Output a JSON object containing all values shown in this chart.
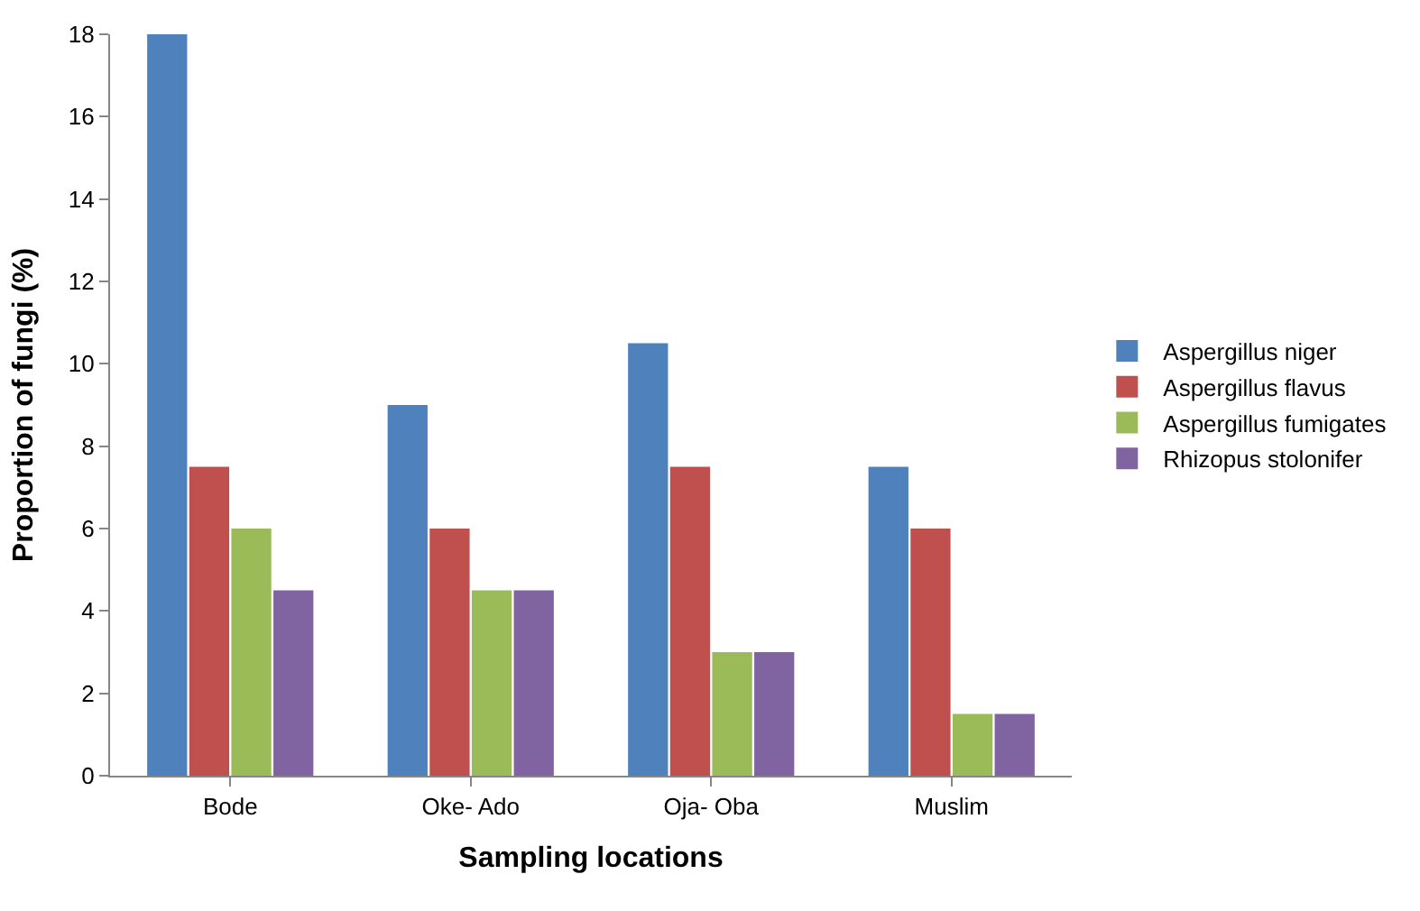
{
  "chart_data": {
    "type": "bar",
    "xlabel": "Sampling locations",
    "ylabel": "Proportion of fungi (%)",
    "categories": [
      "Bode",
      "Oke- Ado",
      "Oja- Oba",
      "Muslim"
    ],
    "series": [
      {
        "name": "Aspergillus niger",
        "color": "#4f81bd",
        "values": [
          18,
          9,
          10.5,
          7.5
        ]
      },
      {
        "name": "Aspergillus flavus",
        "color": "#c0504d",
        "values": [
          7.5,
          6,
          7.5,
          6
        ]
      },
      {
        "name": "Aspergillus fumigates",
        "color": "#9bbb59",
        "values": [
          6,
          4.5,
          3,
          1.5
        ]
      },
      {
        "name": "Rhizopus stolonifer",
        "color": "#8064a2",
        "values": [
          4.5,
          4.5,
          3,
          1.5
        ]
      }
    ],
    "ylim": [
      0,
      18
    ],
    "yticks": [
      0,
      2,
      4,
      6,
      8,
      10,
      12,
      14,
      16,
      18
    ],
    "legend": "right"
  }
}
